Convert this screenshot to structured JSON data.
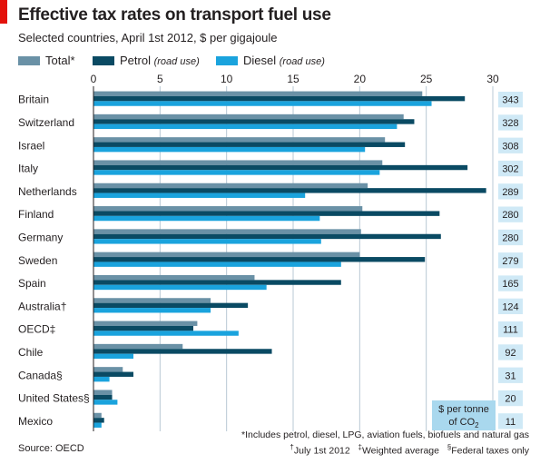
{
  "header": {
    "title": "Effective tax rates on transport fuel use",
    "subtitle": "Selected countries, April 1st 2012, $ per gigajoule"
  },
  "legend": [
    {
      "label": "Total*",
      "note": "",
      "color": "#6a91a6"
    },
    {
      "label": "Petrol",
      "note": "(road use)",
      "color": "#0a4a63"
    },
    {
      "label": "Diesel",
      "note": "(road use)",
      "color": "#1aa3dd"
    }
  ],
  "colors": {
    "brand_red": "#e3120b",
    "gridline": "#b8c8d4",
    "tonne_box": "#cfe9f6",
    "tonne_header": "#a9d8ee"
  },
  "co2_header": {
    "line1": "$ per tonne",
    "line2": "of CO",
    "sub": "2"
  },
  "footer": {
    "source": "Source: OECD",
    "note1": "*Includes petrol, diesel, LPG, aviation fuels, biofuels and natural gas",
    "note2a": "July 1st 2012",
    "note2b": "Weighted average",
    "note2c": "Federal taxes only"
  },
  "chart_data": {
    "type": "bar",
    "orientation": "horizontal",
    "xlim": [
      0,
      30
    ],
    "xticks": [
      0,
      5,
      10,
      15,
      20,
      25,
      30
    ],
    "grid": true,
    "categories": [
      "Britain",
      "Switzerland",
      "Israel",
      "Italy",
      "Netherlands",
      "Finland",
      "Germany",
      "Sweden",
      "Spain",
      "Australia†",
      "OECD‡",
      "Chile",
      "Canada§",
      "United States§",
      "Mexico"
    ],
    "series": [
      {
        "name": "Total*",
        "values": [
          24.7,
          23.3,
          21.9,
          21.7,
          20.6,
          20.2,
          20.1,
          20.0,
          12.1,
          8.8,
          7.8,
          6.7,
          2.2,
          1.4,
          0.6
        ]
      },
      {
        "name": "Petrol",
        "values": [
          27.9,
          24.1,
          23.4,
          28.1,
          29.5,
          26.0,
          26.1,
          24.9,
          18.6,
          11.6,
          7.5,
          13.4,
          3.0,
          1.4,
          0.8
        ]
      },
      {
        "name": "Diesel",
        "values": [
          25.4,
          22.8,
          20.4,
          21.5,
          15.9,
          17.0,
          17.1,
          18.6,
          13.0,
          8.8,
          10.9,
          3.0,
          1.2,
          1.8,
          0.6
        ]
      }
    ],
    "co2_per_tonne": [
      343,
      328,
      308,
      302,
      289,
      280,
      280,
      279,
      165,
      124,
      111,
      92,
      31,
      20,
      11
    ]
  }
}
